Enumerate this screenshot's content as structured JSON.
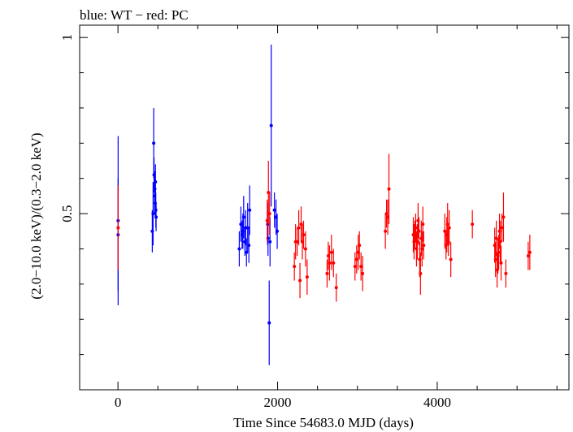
{
  "chart_data": {
    "type": "scatter",
    "title": "blue: WT − red: PC",
    "xlabel": "Time Since 54683.0 MJD (days)",
    "ylabel": "(2.0−10.0 keV)/(0.3−2.0 keV)",
    "xlim": [
      -480,
      5650
    ],
    "ylim": [
      0.0,
      1.035
    ],
    "x_ticks": [
      0,
      2000,
      4000
    ],
    "x_tick_labels": [
      "0",
      "2000",
      "4000"
    ],
    "y_ticks": [
      0.5,
      1.0
    ],
    "y_tick_labels": [
      "0.5",
      "1"
    ],
    "grid": false,
    "colors": {
      "WT": "#0000ff",
      "PC": "#ff0000",
      "axis": "#000000"
    },
    "series": [
      {
        "key": "WT",
        "points": [
          [
            2,
            0.44,
            0.16
          ],
          [
            2,
            0.48,
            0.24
          ],
          [
            430,
            0.45,
            0.06
          ],
          [
            440,
            0.5,
            0.09
          ],
          [
            448,
            0.7,
            0.1
          ],
          [
            452,
            0.61,
            0.05
          ],
          [
            458,
            0.55,
            0.05
          ],
          [
            462,
            0.57,
            0.05
          ],
          [
            466,
            0.53,
            0.04
          ],
          [
            470,
            0.59,
            0.05
          ],
          [
            474,
            0.51,
            0.05
          ],
          [
            478,
            0.49,
            0.04
          ],
          [
            1520,
            0.4,
            0.05
          ],
          [
            1540,
            0.47,
            0.05
          ],
          [
            1555,
            0.44,
            0.04
          ],
          [
            1565,
            0.45,
            0.05
          ],
          [
            1575,
            0.49,
            0.06
          ],
          [
            1590,
            0.42,
            0.04
          ],
          [
            1600,
            0.46,
            0.05
          ],
          [
            1610,
            0.39,
            0.04
          ],
          [
            1625,
            0.46,
            0.07
          ],
          [
            1640,
            0.41,
            0.05
          ],
          [
            1650,
            0.51,
            0.07
          ],
          [
            1875,
            0.47,
            0.06
          ],
          [
            1880,
            0.43,
            0.05
          ],
          [
            1895,
            0.19,
            0.12
          ],
          [
            1905,
            0.42,
            0.07
          ],
          [
            1920,
            0.75,
            0.23
          ],
          [
            1960,
            0.51,
            0.05
          ],
          [
            1980,
            0.49,
            0.05
          ],
          [
            1995,
            0.45,
            0.05
          ]
        ]
      },
      {
        "key": "PC",
        "points": [
          [
            2,
            0.46,
            0.12
          ],
          [
            1870,
            0.48,
            0.06
          ],
          [
            1885,
            0.56,
            0.09
          ],
          [
            1900,
            0.5,
            0.06
          ],
          [
            2210,
            0.35,
            0.04
          ],
          [
            2225,
            0.42,
            0.05
          ],
          [
            2245,
            0.42,
            0.04
          ],
          [
            2265,
            0.46,
            0.05
          ],
          [
            2280,
            0.31,
            0.05
          ],
          [
            2295,
            0.47,
            0.05
          ],
          [
            2310,
            0.42,
            0.05
          ],
          [
            2325,
            0.44,
            0.04
          ],
          [
            2350,
            0.4,
            0.05
          ],
          [
            2370,
            0.32,
            0.05
          ],
          [
            2620,
            0.33,
            0.04
          ],
          [
            2635,
            0.38,
            0.04
          ],
          [
            2650,
            0.36,
            0.05
          ],
          [
            2675,
            0.39,
            0.05
          ],
          [
            2700,
            0.36,
            0.04
          ],
          [
            2735,
            0.29,
            0.04
          ],
          [
            2970,
            0.35,
            0.04
          ],
          [
            2990,
            0.37,
            0.04
          ],
          [
            3010,
            0.39,
            0.05
          ],
          [
            3025,
            0.41,
            0.04
          ],
          [
            3045,
            0.35,
            0.04
          ],
          [
            3065,
            0.33,
            0.05
          ],
          [
            3350,
            0.45,
            0.05
          ],
          [
            3365,
            0.5,
            0.04
          ],
          [
            3380,
            0.49,
            0.05
          ],
          [
            3395,
            0.57,
            0.1
          ],
          [
            3700,
            0.44,
            0.05
          ],
          [
            3710,
            0.42,
            0.05
          ],
          [
            3720,
            0.44,
            0.04
          ],
          [
            3730,
            0.46,
            0.04
          ],
          [
            3740,
            0.4,
            0.05
          ],
          [
            3750,
            0.42,
            0.05
          ],
          [
            3760,
            0.48,
            0.05
          ],
          [
            3770,
            0.45,
            0.04
          ],
          [
            3780,
            0.37,
            0.05
          ],
          [
            3790,
            0.33,
            0.06
          ],
          [
            3800,
            0.43,
            0.05
          ],
          [
            3810,
            0.4,
            0.05
          ],
          [
            3820,
            0.47,
            0.05
          ],
          [
            3830,
            0.41,
            0.04
          ],
          [
            4095,
            0.45,
            0.05
          ],
          [
            4110,
            0.41,
            0.04
          ],
          [
            4120,
            0.44,
            0.05
          ],
          [
            4130,
            0.47,
            0.06
          ],
          [
            4140,
            0.42,
            0.04
          ],
          [
            4150,
            0.46,
            0.05
          ],
          [
            4170,
            0.37,
            0.05
          ],
          [
            4440,
            0.47,
            0.04
          ],
          [
            4720,
            0.41,
            0.05
          ],
          [
            4730,
            0.37,
            0.05
          ],
          [
            4740,
            0.43,
            0.05
          ],
          [
            4750,
            0.34,
            0.05
          ],
          [
            4760,
            0.38,
            0.05
          ],
          [
            4770,
            0.39,
            0.05
          ],
          [
            4780,
            0.45,
            0.05
          ],
          [
            4790,
            0.42,
            0.06
          ],
          [
            4800,
            0.36,
            0.05
          ],
          [
            4810,
            0.46,
            0.04
          ],
          [
            4830,
            0.49,
            0.07
          ],
          [
            4860,
            0.33,
            0.04
          ],
          [
            5140,
            0.38,
            0.04
          ],
          [
            5160,
            0.39,
            0.05
          ]
        ]
      }
    ]
  }
}
